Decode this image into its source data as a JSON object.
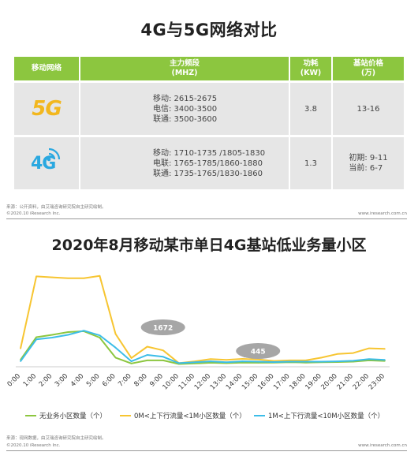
{
  "top": {
    "title": "4G与5G网络对比",
    "headers": {
      "network": "移动网络",
      "band_l1": "主力频段",
      "band_l2": "(MHZ)",
      "power_l1": "功耗",
      "power_l2": "(KW)",
      "price_l1": "基站价格",
      "price_l2": "(万)"
    },
    "rows": [
      {
        "logo": "5G",
        "icon": "5g-logo-icon",
        "bands": [
          "移动:  2615-2675",
          "电信:  3400-3500",
          "联通:  3500-3600"
        ],
        "power": "3.8",
        "price": [
          "13-16"
        ]
      },
      {
        "logo": "4G",
        "icon": "4g-signal-logo-icon",
        "bands": [
          "移动:  1710-1735 /1805-1830",
          "电联:  1765-1785/1860-1880",
          "联通:  1735-1765/1830-1860"
        ],
        "power": "1.3",
        "price": [
          "初期:  9-11",
          "当前:  6-7"
        ]
      }
    ],
    "source": "来源：公开资料，由艾瑞咨询研究院自主研究绘制。",
    "copyright": "©2020.10 iResearch Inc.",
    "site": "www.iresearch.com.cn"
  },
  "chart_data": {
    "type": "line",
    "title": "2020年8月移动某市单日4G基站低业务量小区",
    "x": [
      "0:00",
      "1:00",
      "2:00",
      "3:00",
      "4:00",
      "5:00",
      "6:00",
      "7:00",
      "8:00",
      "9:00",
      "10:00",
      "11:00",
      "12:00",
      "13:00",
      "14:00",
      "15:00",
      "16:00",
      "17:00",
      "18:00",
      "19:00",
      "20:00",
      "21:00",
      "22:00",
      "23:00"
    ],
    "ylim": [
      0,
      5400
    ],
    "series": [
      {
        "name": "无业务小区数量（个）",
        "color": "#8cc63f",
        "values": [
          380,
          1620,
          1750,
          1900,
          1950,
          1600,
          500,
          180,
          350,
          350,
          150,
          180,
          220,
          200,
          230,
          220,
          230,
          250,
          230,
          250,
          260,
          280,
          350,
          320
        ]
      },
      {
        "name": "0M<上下行流量<1M小区数量（个）",
        "color": "#f7c531",
        "values": [
          1000,
          4950,
          4900,
          4850,
          4850,
          4980,
          1800,
          480,
          1100,
          900,
          200,
          300,
          420,
          380,
          430,
          400,
          320,
          350,
          350,
          500,
          700,
          750,
          1010,
          980
        ]
      },
      {
        "name": "1M<上下行流量<10M小区数量（个）",
        "color": "#3cbde8",
        "values": [
          300,
          1500,
          1600,
          1750,
          1980,
          1720,
          1050,
          300,
          650,
          550,
          200,
          250,
          300,
          250,
          300,
          280,
          260,
          280,
          280,
          280,
          300,
          330,
          420,
          380
        ]
      }
    ],
    "annotations": [
      {
        "label": "1672",
        "x": "8:00"
      },
      {
        "label": "445",
        "x": "14:00"
      }
    ],
    "source": "来源：现网数据，由艾瑞咨询研究院自主研究绘制。",
    "copyright": "©2020.10 iResearch Inc.",
    "site": "www.iresearch.com.cn"
  }
}
